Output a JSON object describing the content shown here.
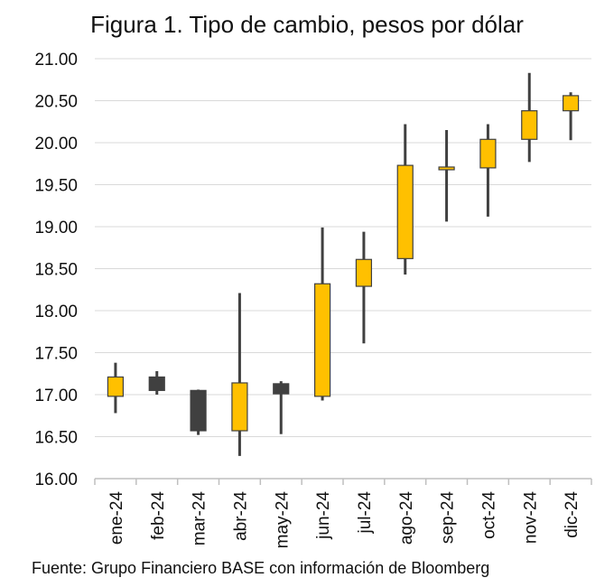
{
  "chart_data": {
    "type": "candlestick",
    "title": "Figura 1. Tipo de cambio, pesos por dólar",
    "source": "Fuente: Grupo Financiero BASE con información de Bloomberg",
    "xlabel": "",
    "ylabel": "",
    "ylim": [
      16.0,
      21.0
    ],
    "yticks": [
      "16.00",
      "16.50",
      "17.00",
      "17.50",
      "18.00",
      "18.50",
      "19.00",
      "19.50",
      "20.00",
      "20.50",
      "21.00"
    ],
    "grid": true,
    "categories": [
      "ene-24",
      "feb-24",
      "mar-24",
      "abr-24",
      "may-24",
      "jun-24",
      "jul-24",
      "ago-24",
      "sep-24",
      "oct-24",
      "nov-24",
      "dic-24"
    ],
    "open": [
      16.98,
      17.21,
      17.05,
      16.57,
      17.13,
      16.98,
      18.29,
      18.62,
      19.69,
      19.7,
      20.04,
      20.38
    ],
    "high": [
      17.38,
      17.28,
      17.06,
      18.21,
      17.16,
      18.99,
      18.94,
      20.22,
      20.15,
      20.22,
      20.83,
      20.6
    ],
    "low": [
      16.78,
      17.0,
      16.52,
      16.27,
      16.53,
      16.93,
      17.61,
      18.43,
      19.06,
      19.12,
      19.77,
      20.03
    ],
    "close": [
      17.21,
      17.05,
      16.57,
      17.14,
      17.01,
      18.32,
      18.61,
      19.73,
      19.71,
      20.04,
      20.38,
      20.56
    ],
    "up_color": "#FFC000",
    "down_color": "#404040",
    "wick_color": "#404040"
  }
}
